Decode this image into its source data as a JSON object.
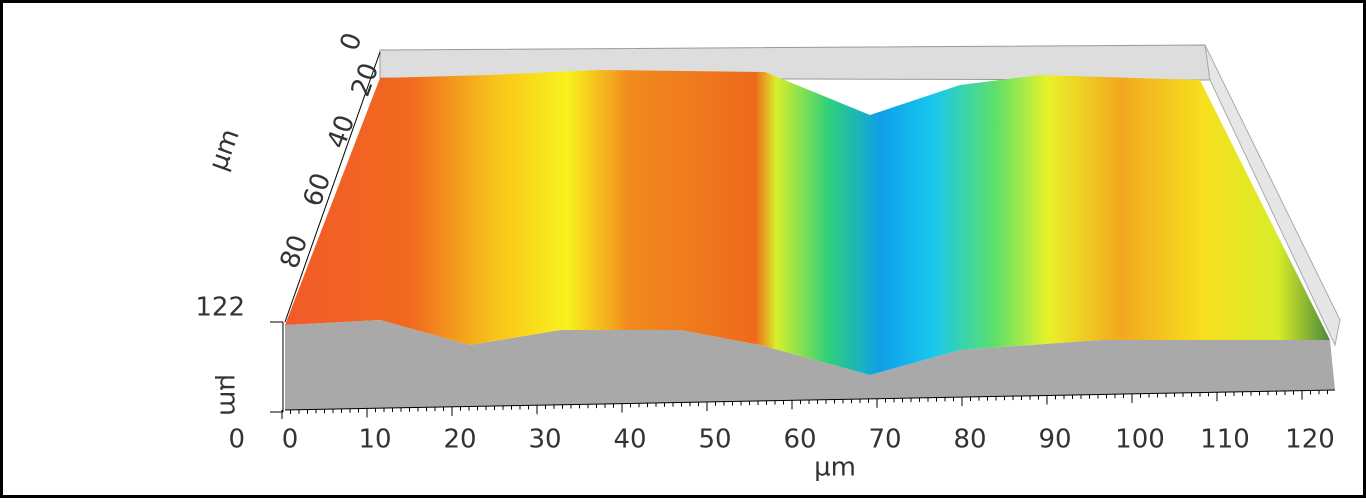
{
  "x_axis": {
    "label": "µm",
    "ticks": [
      0,
      10,
      20,
      30,
      40,
      50,
      60,
      70,
      80,
      90,
      100,
      110,
      120
    ]
  },
  "y_axis": {
    "label": "µm",
    "ticks": [
      0,
      20,
      40,
      60,
      80
    ]
  },
  "z_axis": {
    "label": "µm",
    "ticks": [
      0,
      122
    ]
  }
}
